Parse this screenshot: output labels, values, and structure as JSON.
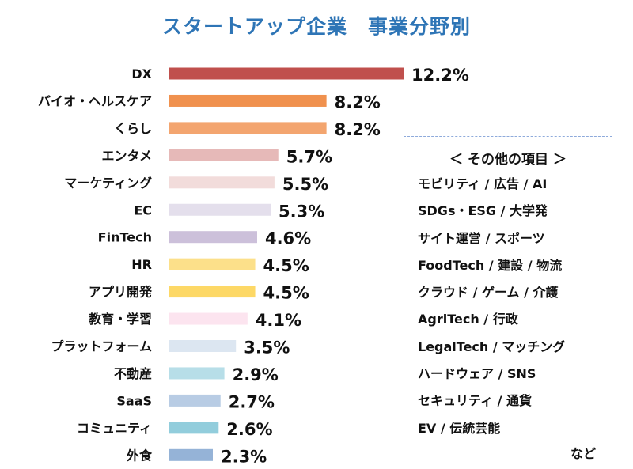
{
  "chart_data": {
    "type": "bar",
    "orientation": "horizontal",
    "title": "スタートアップ企業　事業分野別",
    "categories": [
      "DX",
      "バイオ・ヘルスケア",
      "くらし",
      "エンタメ",
      "マーケティング",
      "EC",
      "FinTech",
      "HR",
      "アプリ開発",
      "教育・学習",
      "プラットフォーム",
      "不動産",
      "SaaS",
      "コミュニティ",
      "外食"
    ],
    "values": [
      12.2,
      8.2,
      8.2,
      5.7,
      5.5,
      5.3,
      4.6,
      4.5,
      4.5,
      4.1,
      3.5,
      2.9,
      2.7,
      2.6,
      2.3
    ],
    "value_labels": [
      "12.2%",
      "8.2%",
      "8.2%",
      "5.7%",
      "5.5%",
      "5.3%",
      "4.6%",
      "4.5%",
      "4.5%",
      "4.1%",
      "3.5%",
      "2.9%",
      "2.7%",
      "2.6%",
      "2.3%"
    ],
    "colors": [
      "#c0504d",
      "#f0914e",
      "#f3a56f",
      "#e6b9b8",
      "#f2dcdb",
      "#e4dfec",
      "#ccc0da",
      "#fce08a",
      "#fdd866",
      "#fce4ef",
      "#dce6f1",
      "#b7dee8",
      "#b8cce4",
      "#92cddc",
      "#95b3d7"
    ],
    "xlim": [
      0,
      12.2
    ],
    "grid": false,
    "legend": "none"
  },
  "other_box": {
    "title": "＜ その他の項目 ＞",
    "items": [
      "モビリティ / 広告 / AI",
      "SDGs・ESG / 大学発",
      "サイト運営 / スポーツ",
      "FoodTech / 建設 / 物流",
      "クラウド / ゲーム / 介護",
      "AgriTech / 行政",
      "LegalTech / マッチング",
      "ハードウェア / SNS",
      "セキュリティ / 通貨",
      "EV / 伝統芸能"
    ],
    "etc": "など"
  },
  "colors": {
    "title": "#2e75b6",
    "box_border": "#8eaadb"
  }
}
